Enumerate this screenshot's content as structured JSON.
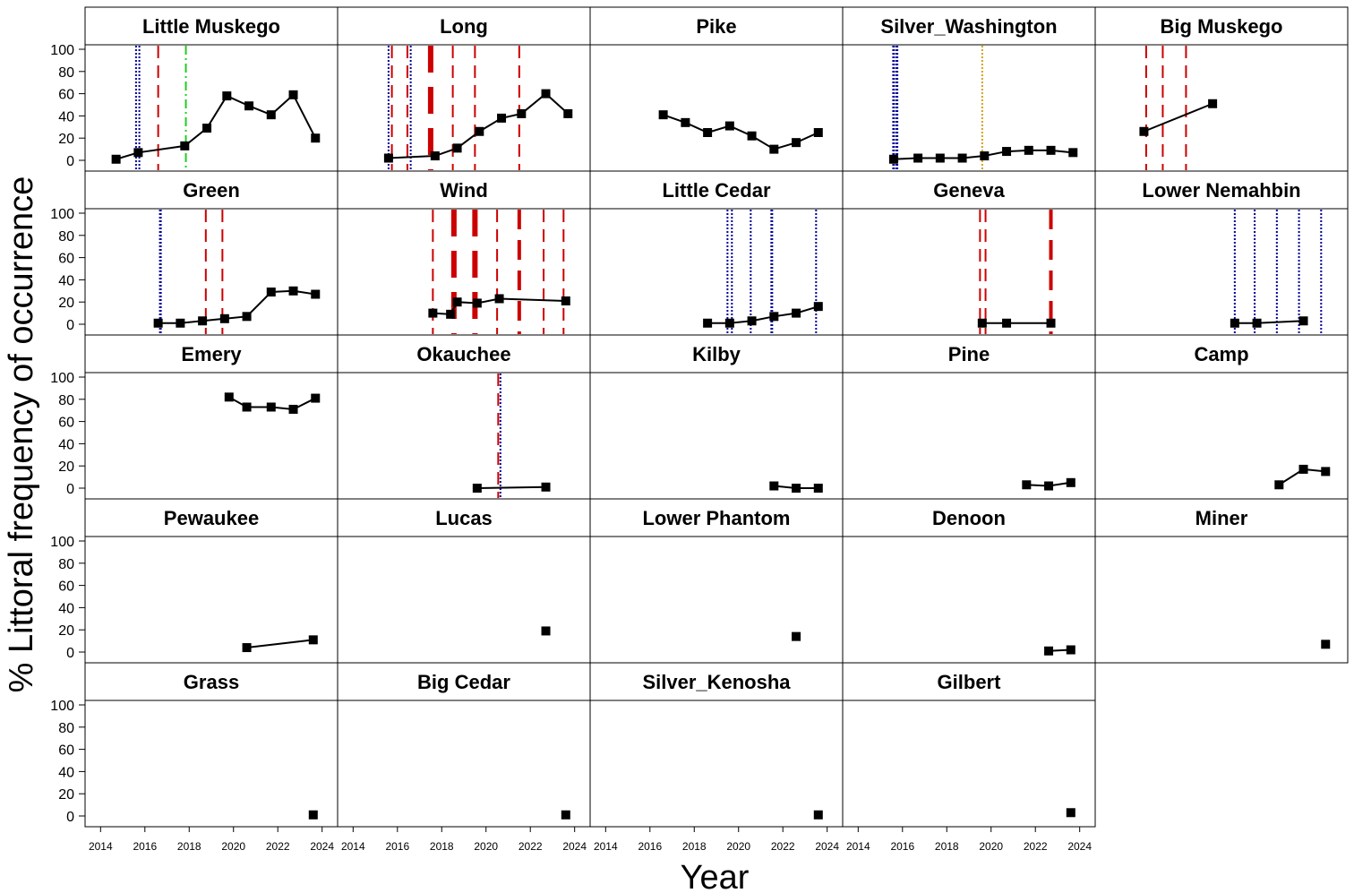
{
  "chart_data": {
    "type": "line",
    "ylabel": "% Littoral frequency of occurrence",
    "xlabel": "Year",
    "ylim": [
      0,
      100
    ],
    "xlim": [
      2013.3,
      2024.7
    ],
    "y_ticks": [
      0,
      20,
      40,
      60,
      80,
      100
    ],
    "x_ticks": [
      2014,
      2016,
      2018,
      2020,
      2022,
      2024
    ],
    "line_colors": {
      "red": "#cc0000",
      "blue": "#000099",
      "green": "#22cc22",
      "orange": "#d4a017",
      "series": "#000000"
    },
    "panels": [
      {
        "title": "Little Muskego",
        "points": [
          [
            2014.7,
            1
          ],
          [
            2015.7,
            7
          ],
          [
            2017.8,
            13
          ],
          [
            2018.8,
            29
          ],
          [
            2019.7,
            58
          ],
          [
            2020.7,
            49
          ],
          [
            2021.7,
            41
          ],
          [
            2022.7,
            59
          ],
          [
            2023.7,
            20
          ]
        ],
        "vlines": [
          {
            "x": 2015.6,
            "color": "blue",
            "style": "dotted",
            "w": 2
          },
          {
            "x": 2015.75,
            "color": "blue",
            "style": "dotted",
            "w": 2
          },
          {
            "x": 2016.6,
            "color": "red",
            "style": "dashed",
            "w": 2
          },
          {
            "x": 2017.85,
            "color": "green",
            "style": "dashdot",
            "w": 2
          }
        ]
      },
      {
        "title": "Long",
        "points": [
          [
            2015.6,
            2
          ],
          [
            2017.7,
            4
          ],
          [
            2018.7,
            11
          ],
          [
            2019.7,
            26
          ],
          [
            2020.7,
            38
          ],
          [
            2021.6,
            42
          ],
          [
            2022.7,
            60
          ],
          [
            2023.7,
            42
          ]
        ],
        "vlines": [
          {
            "x": 2015.6,
            "color": "blue",
            "style": "dotted",
            "w": 2
          },
          {
            "x": 2015.75,
            "color": "red",
            "style": "dashed",
            "w": 2
          },
          {
            "x": 2016.45,
            "color": "red",
            "style": "dashed",
            "w": 2
          },
          {
            "x": 2016.6,
            "color": "blue",
            "style": "dotted",
            "w": 2
          },
          {
            "x": 2017.5,
            "color": "red",
            "style": "dashed",
            "w": 6
          },
          {
            "x": 2018.5,
            "color": "red",
            "style": "dashed",
            "w": 2
          },
          {
            "x": 2019.5,
            "color": "red",
            "style": "dashed",
            "w": 2
          },
          {
            "x": 2021.5,
            "color": "red",
            "style": "dashed",
            "w": 2
          }
        ]
      },
      {
        "title": "Pike",
        "points": [
          [
            2016.6,
            41
          ],
          [
            2017.6,
            34
          ],
          [
            2018.6,
            25
          ],
          [
            2019.6,
            31
          ],
          [
            2020.6,
            22
          ],
          [
            2021.6,
            10
          ],
          [
            2022.6,
            16
          ],
          [
            2023.6,
            25
          ]
        ],
        "vlines": []
      },
      {
        "title": "Silver_Washington",
        "points": [
          [
            2015.6,
            1
          ],
          [
            2016.7,
            2
          ],
          [
            2017.7,
            2
          ],
          [
            2018.7,
            2
          ],
          [
            2019.7,
            4
          ],
          [
            2020.7,
            8
          ],
          [
            2021.7,
            9
          ],
          [
            2022.7,
            9
          ],
          [
            2023.7,
            7
          ]
        ],
        "vlines": [
          {
            "x": 2015.6,
            "color": "blue",
            "style": "dotted",
            "w": 3
          },
          {
            "x": 2015.75,
            "color": "blue",
            "style": "dotted",
            "w": 3
          },
          {
            "x": 2019.6,
            "color": "orange",
            "style": "dotted",
            "w": 2
          }
        ]
      },
      {
        "title": "Big Muskego",
        "points": [
          [
            2015.5,
            26
          ],
          [
            2018.6,
            51
          ]
        ],
        "vlines": [
          {
            "x": 2015.6,
            "color": "red",
            "style": "dashed",
            "w": 2
          },
          {
            "x": 2016.35,
            "color": "red",
            "style": "dashed",
            "w": 2
          },
          {
            "x": 2017.4,
            "color": "red",
            "style": "dashed",
            "w": 2
          }
        ]
      },
      {
        "title": "Green",
        "points": [
          [
            2016.6,
            1
          ],
          [
            2017.6,
            1
          ],
          [
            2018.6,
            3
          ],
          [
            2019.6,
            5
          ],
          [
            2020.6,
            7
          ],
          [
            2021.7,
            29
          ],
          [
            2022.7,
            30
          ],
          [
            2023.7,
            27
          ]
        ],
        "vlines": [
          {
            "x": 2016.7,
            "color": "blue",
            "style": "dotted",
            "w": 3
          },
          {
            "x": 2018.75,
            "color": "red",
            "style": "dashed",
            "w": 2
          },
          {
            "x": 2019.5,
            "color": "red",
            "style": "dashed",
            "w": 2
          }
        ]
      },
      {
        "title": "Wind",
        "points": [
          [
            2017.6,
            10
          ],
          [
            2018.4,
            9
          ],
          [
            2018.7,
            20
          ],
          [
            2019.6,
            19
          ],
          [
            2020.6,
            23
          ],
          [
            2023.6,
            21
          ]
        ],
        "vlines": [
          {
            "x": 2017.6,
            "color": "red",
            "style": "dashed",
            "w": 2
          },
          {
            "x": 2018.55,
            "color": "red",
            "style": "dashed",
            "w": 6
          },
          {
            "x": 2019.5,
            "color": "red",
            "style": "dashed",
            "w": 6
          },
          {
            "x": 2020.5,
            "color": "red",
            "style": "dashed",
            "w": 2
          },
          {
            "x": 2021.5,
            "color": "red",
            "style": "dashed",
            "w": 4
          },
          {
            "x": 2022.6,
            "color": "red",
            "style": "dashed",
            "w": 2
          },
          {
            "x": 2023.5,
            "color": "red",
            "style": "dashed",
            "w": 2
          }
        ]
      },
      {
        "title": "Little Cedar",
        "points": [
          [
            2018.6,
            1
          ],
          [
            2019.6,
            1
          ],
          [
            2020.6,
            3
          ],
          [
            2021.6,
            7
          ],
          [
            2022.6,
            10
          ],
          [
            2023.6,
            16
          ]
        ],
        "vlines": [
          {
            "x": 2019.5,
            "color": "blue",
            "style": "dotted",
            "w": 2
          },
          {
            "x": 2019.7,
            "color": "blue",
            "style": "dotted",
            "w": 2
          },
          {
            "x": 2020.55,
            "color": "blue",
            "style": "dotted",
            "w": 2
          },
          {
            "x": 2021.5,
            "color": "blue",
            "style": "dotted",
            "w": 3
          },
          {
            "x": 2023.5,
            "color": "blue",
            "style": "dotted",
            "w": 2
          }
        ]
      },
      {
        "title": "Geneva",
        "points": [
          [
            2019.6,
            1
          ],
          [
            2020.7,
            1
          ],
          [
            2022.7,
            1
          ]
        ],
        "vlines": [
          {
            "x": 2019.5,
            "color": "red",
            "style": "dashed",
            "w": 2
          },
          {
            "x": 2019.75,
            "color": "red",
            "style": "dashed",
            "w": 2
          },
          {
            "x": 2022.7,
            "color": "red",
            "style": "dashed",
            "w": 4
          }
        ]
      },
      {
        "title": "Lower Nemahbin",
        "points": [
          [
            2019.6,
            1
          ],
          [
            2020.6,
            1
          ],
          [
            2022.7,
            3
          ]
        ],
        "vlines": [
          {
            "x": 2019.6,
            "color": "blue",
            "style": "dotted",
            "w": 2
          },
          {
            "x": 2020.5,
            "color": "blue",
            "style": "dotted",
            "w": 2
          },
          {
            "x": 2021.5,
            "color": "blue",
            "style": "dotted",
            "w": 2
          },
          {
            "x": 2022.5,
            "color": "blue",
            "style": "dotted",
            "w": 2
          },
          {
            "x": 2023.5,
            "color": "blue",
            "style": "dotted",
            "w": 2
          }
        ]
      },
      {
        "title": "Emery",
        "points": [
          [
            2019.8,
            82
          ],
          [
            2020.6,
            73
          ],
          [
            2021.7,
            73
          ],
          [
            2022.7,
            71
          ],
          [
            2023.7,
            81
          ]
        ],
        "vlines": []
      },
      {
        "title": "Okauchee",
        "points": [
          [
            2019.6,
            0
          ],
          [
            2022.7,
            1
          ]
        ],
        "vlines": [
          {
            "x": 2020.55,
            "color": "red",
            "style": "dashed",
            "w": 2
          },
          {
            "x": 2020.65,
            "color": "blue",
            "style": "dotted",
            "w": 2
          }
        ]
      },
      {
        "title": "Kilby",
        "points": [
          [
            2021.6,
            2
          ],
          [
            2022.6,
            0
          ],
          [
            2023.6,
            0
          ]
        ],
        "vlines": []
      },
      {
        "title": "Pine",
        "points": [
          [
            2021.6,
            3
          ],
          [
            2022.6,
            2
          ],
          [
            2023.6,
            5
          ]
        ],
        "vlines": []
      },
      {
        "title": "Camp",
        "points": [
          [
            2021.6,
            3
          ],
          [
            2022.7,
            17
          ],
          [
            2023.7,
            15
          ]
        ],
        "vlines": []
      },
      {
        "title": "Pewaukee",
        "points": [
          [
            2020.6,
            4
          ],
          [
            2023.6,
            11
          ]
        ],
        "vlines": []
      },
      {
        "title": "Lucas",
        "points": [
          [
            2022.7,
            19
          ]
        ],
        "vlines": []
      },
      {
        "title": "Lower Phantom",
        "points": [
          [
            2022.6,
            14
          ]
        ],
        "vlines": []
      },
      {
        "title": "Denoon",
        "points": [
          [
            2022.6,
            1
          ],
          [
            2023.6,
            2
          ]
        ],
        "vlines": []
      },
      {
        "title": "Miner",
        "points": [
          [
            2023.7,
            7
          ]
        ],
        "vlines": []
      },
      {
        "title": "Grass",
        "points": [
          [
            2023.6,
            1
          ]
        ],
        "vlines": []
      },
      {
        "title": "Big Cedar",
        "points": [
          [
            2023.6,
            1
          ]
        ],
        "vlines": []
      },
      {
        "title": "Silver_Kenosha",
        "points": [
          [
            2023.6,
            1
          ]
        ],
        "vlines": []
      },
      {
        "title": "Gilbert",
        "points": [
          [
            2023.6,
            3
          ]
        ],
        "vlines": []
      }
    ]
  }
}
